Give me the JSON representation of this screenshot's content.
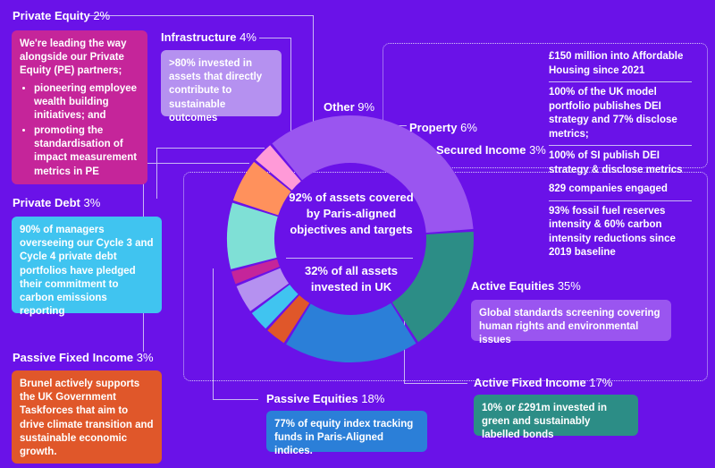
{
  "chart_data": {
    "type": "donut",
    "segments": [
      {
        "name": "Active Equities",
        "value": 35,
        "color": "#9a55f0"
      },
      {
        "name": "Active Fixed Income",
        "value": 17,
        "color": "#2c8d86"
      },
      {
        "name": "Passive Equities",
        "value": 18,
        "color": "#2b7fd8"
      },
      {
        "name": "Passive Fixed Income",
        "value": 3,
        "color": "#e0572a"
      },
      {
        "name": "Private Debt",
        "value": 3,
        "color": "#40c4f0"
      },
      {
        "name": "Infrastructure",
        "value": 4,
        "color": "#b591f0"
      },
      {
        "name": "Private Equity",
        "value": 2,
        "color": "#c5259a"
      },
      {
        "name": "Other",
        "value": 9,
        "color": "#7fe0d6"
      },
      {
        "name": "Property",
        "value": 6,
        "color": "#ff915c"
      },
      {
        "name": "Secured Income",
        "value": 3,
        "color": "#ff9ad8"
      }
    ],
    "center_line1": "92% of assets covered by Paris-aligned objectives and targets",
    "center_line2": "32% of all assets invested in UK"
  },
  "labels": {
    "private_equity": {
      "name": "Private Equity",
      "pct": "2%"
    },
    "infrastructure": {
      "name": "Infrastructure",
      "pct": "4%"
    },
    "other": {
      "name": "Other",
      "pct": "9%"
    },
    "property": {
      "name": "Property",
      "pct": "6%"
    },
    "secured_income": {
      "name": "Secured Income",
      "pct": "3%"
    },
    "private_debt": {
      "name": "Private Debt",
      "pct": "3%"
    },
    "active_equities": {
      "name": "Active Equities",
      "pct": "35%"
    },
    "passive_fixed_income": {
      "name": "Passive Fixed Income",
      "pct": "3%"
    },
    "passive_equities": {
      "name": "Passive Equities",
      "pct": "18%"
    },
    "active_fixed_income": {
      "name": "Active Fixed Income",
      "pct": "17%"
    }
  },
  "cards": {
    "private_equity_intro": "We're leading the way alongside our Private Equity (PE) partners;",
    "private_equity_bullet1": "pioneering employee wealth building initiatives; and",
    "private_equity_bullet2": "promoting the standardisation of impact measurement metrics in PE",
    "infrastructure": ">80% invested in assets that directly contribute to sustainable outcomes",
    "private_debt": "90% of managers overseeing our Cycle 3 and Cycle 4 private debt portfolios have pledged their commitment to carbon emissions reporting",
    "passive_fixed_income": "Brunel actively supports the UK Government Taskforces that aim to drive climate transition and sustainable economic growth.",
    "passive_equities": "77% of equity index tracking funds in Paris-Aligned indices.",
    "active_equities": "Global standards screening covering human rights and environmental issues",
    "active_fixed_income": "10% or £291m invested in green and sustainably labelled bonds"
  },
  "right_top": [
    "£150 million into Affordable Housing since 2021",
    "100% of the UK model portfolio publishes DEI strategy and 77% disclose metrics;",
    "100% of SI publish DEI strategy & disclose metrics"
  ],
  "right_mid": [
    "829 companies engaged",
    "93% fossil fuel reserves intensity & 60% carbon intensity reductions since 2019 baseline"
  ]
}
